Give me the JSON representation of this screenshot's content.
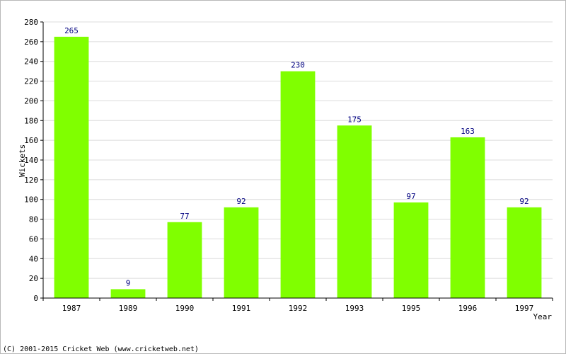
{
  "chart_data": {
    "type": "bar",
    "categories": [
      "1987",
      "1989",
      "1990",
      "1991",
      "1992",
      "1993",
      "1995",
      "1996",
      "1997"
    ],
    "values": [
      265,
      9,
      77,
      92,
      230,
      175,
      97,
      163,
      92
    ],
    "title": "",
    "xlabel": "Year",
    "ylabel": "Wickets",
    "ylim": [
      0,
      280
    ],
    "yticks": [
      0,
      20,
      40,
      60,
      80,
      100,
      120,
      140,
      160,
      180,
      200,
      220,
      240,
      260,
      280
    ],
    "grid": true,
    "bar_color": "#80ff00",
    "data_label_color": "#000080"
  },
  "footer": {
    "copyright": "(C) 2001-2015 Cricket Web (www.cricketweb.net)"
  }
}
